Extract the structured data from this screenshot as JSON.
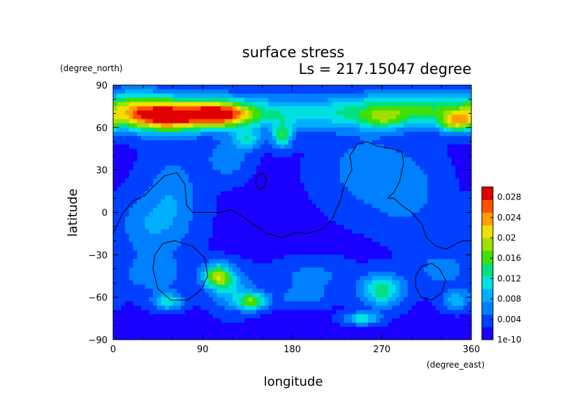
{
  "chart_data": {
    "type": "heatmap",
    "title": "surface stress",
    "subtitle": "Ls = 217.15047 degree",
    "xlabel": "longitude",
    "ylabel": "latitude",
    "x_units": "(degree_east)",
    "y_units": "(degree_north)",
    "xlim": [
      0,
      360
    ],
    "ylim": [
      -90,
      90
    ],
    "x_ticks": [
      0,
      90,
      180,
      270,
      360
    ],
    "y_ticks": [
      90,
      60,
      30,
      0,
      -30,
      -60,
      -90
    ],
    "x_tick_labels": [
      "0",
      "90",
      "180",
      "270",
      "360"
    ],
    "y_tick_labels": [
      "90",
      "60",
      "30",
      "0",
      "−30",
      "−60",
      "−90"
    ],
    "colorbar": {
      "min": 0,
      "max": 0.03,
      "tick_values": [
        0,
        0.004,
        0.008,
        0.012,
        0.016,
        0.02,
        0.024,
        0.028
      ],
      "tick_labels": [
        "1e-10",
        "0.004",
        "0.008",
        "0.012",
        "0.016",
        "0.02",
        "0.024",
        "0.028"
      ],
      "colors": [
        "#1a00ff",
        "#0040ff",
        "#0080ff",
        "#00b0ff",
        "#00e0e0",
        "#00e080",
        "#40e000",
        "#a0e000",
        "#f0e000",
        "#ffa000",
        "#ff5000",
        "#e00000"
      ]
    },
    "field": {
      "background": 0.002,
      "hotspots": [
        {
          "lon": 20,
          "lat": 72,
          "slon": 25,
          "slat": 9,
          "v": 0.012
        },
        {
          "lon": 55,
          "lat": 67,
          "slon": 25,
          "slat": 7,
          "v": 0.018
        },
        {
          "lon": 108,
          "lat": 69,
          "slon": 22,
          "slat": 6,
          "v": 0.02
        },
        {
          "lon": 80,
          "lat": 72,
          "slon": 40,
          "slat": 9,
          "v": 0.01
        },
        {
          "lon": 165,
          "lat": 70,
          "slon": 35,
          "slat": 8,
          "v": 0.006
        },
        {
          "lon": 230,
          "lat": 70,
          "slon": 50,
          "slat": 8,
          "v": 0.006
        },
        {
          "lon": 300,
          "lat": 73,
          "slon": 45,
          "slat": 8,
          "v": 0.012
        },
        {
          "lon": 345,
          "lat": 64,
          "slon": 12,
          "slat": 5,
          "v": 0.014
        },
        {
          "lon": 270,
          "lat": 65,
          "slon": 15,
          "slat": 4,
          "v": 0.006
        },
        {
          "lon": 170,
          "lat": 54,
          "slon": 7,
          "slat": 6,
          "v": 0.012
        },
        {
          "lon": 135,
          "lat": 52,
          "slon": 10,
          "slat": 5,
          "v": 0.009
        },
        {
          "lon": 115,
          "lat": 38,
          "slon": 15,
          "slat": 10,
          "v": 0.005
        },
        {
          "lon": 60,
          "lat": 8,
          "slon": 20,
          "slat": 25,
          "v": 0.005
        },
        {
          "lon": 30,
          "lat": -10,
          "slon": 20,
          "slat": 15,
          "v": 0.004
        },
        {
          "lon": 250,
          "lat": 30,
          "slon": 30,
          "slat": 20,
          "v": 0.004
        },
        {
          "lon": 295,
          "lat": 15,
          "slon": 25,
          "slat": 20,
          "v": 0.004
        },
        {
          "lon": 105,
          "lat": -45,
          "slon": 10,
          "slat": 6,
          "v": 0.016
        },
        {
          "lon": 120,
          "lat": -55,
          "slon": 15,
          "slat": 10,
          "v": 0.007
        },
        {
          "lon": 140,
          "lat": -63,
          "slon": 10,
          "slat": 4,
          "v": 0.014
        },
        {
          "lon": 55,
          "lat": -63,
          "slon": 10,
          "slat": 4,
          "v": 0.01
        },
        {
          "lon": 40,
          "lat": -45,
          "slon": 25,
          "slat": 10,
          "v": 0.004
        },
        {
          "lon": 270,
          "lat": -55,
          "slon": 15,
          "slat": 8,
          "v": 0.012
        },
        {
          "lon": 250,
          "lat": -75,
          "slon": 12,
          "slat": 3,
          "v": 0.01
        },
        {
          "lon": 345,
          "lat": -62,
          "slon": 10,
          "slat": 5,
          "v": 0.007
        },
        {
          "lon": 330,
          "lat": -40,
          "slon": 20,
          "slat": 10,
          "v": 0.004
        },
        {
          "lon": 200,
          "lat": -45,
          "slon": 25,
          "slat": 8,
          "v": 0.004
        },
        {
          "lon": 190,
          "lat": -60,
          "slon": 20,
          "slat": 5,
          "v": 0.004
        }
      ]
    },
    "contours": [
      {
        "name": "continent-outline",
        "points": [
          [
            0,
            -15
          ],
          [
            10,
            0
          ],
          [
            20,
            8
          ],
          [
            32,
            12
          ],
          [
            40,
            18
          ],
          [
            52,
            26
          ],
          [
            64,
            28
          ],
          [
            72,
            20
          ],
          [
            74,
            5
          ],
          [
            80,
            0
          ],
          [
            95,
            0
          ],
          [
            108,
            0
          ],
          [
            118,
            2
          ],
          [
            126,
            -1
          ],
          [
            140,
            -8
          ],
          [
            155,
            -15
          ],
          [
            170,
            -18
          ],
          [
            185,
            -14
          ],
          [
            195,
            -15
          ],
          [
            210,
            -12
          ],
          [
            220,
            -5
          ],
          [
            228,
            8
          ],
          [
            232,
            18
          ],
          [
            236,
            25
          ],
          [
            240,
            30
          ],
          [
            238,
            40
          ],
          [
            245,
            48
          ],
          [
            255,
            50
          ],
          [
            265,
            47
          ],
          [
            280,
            45
          ],
          [
            290,
            43
          ],
          [
            292,
            35
          ],
          [
            288,
            22
          ],
          [
            282,
            14
          ],
          [
            276,
            10
          ],
          [
            282,
            10
          ],
          [
            290,
            5
          ],
          [
            300,
            0
          ],
          [
            310,
            -8
          ],
          [
            315,
            -18
          ],
          [
            325,
            -24
          ],
          [
            335,
            -26
          ],
          [
            345,
            -22
          ],
          [
            352,
            -20
          ],
          [
            360,
            -20
          ]
        ]
      },
      {
        "name": "small-blob",
        "points": [
          [
            143,
            20
          ],
          [
            145,
            26
          ],
          [
            150,
            28
          ],
          [
            154,
            24
          ],
          [
            152,
            18
          ],
          [
            147,
            16
          ],
          [
            143,
            20
          ]
        ]
      },
      {
        "name": "large-circle",
        "points": [
          [
            40,
            -40
          ],
          [
            42,
            -30
          ],
          [
            50,
            -22
          ],
          [
            62,
            -20
          ],
          [
            80,
            -24
          ],
          [
            92,
            -32
          ],
          [
            95,
            -45
          ],
          [
            88,
            -55
          ],
          [
            75,
            -62
          ],
          [
            58,
            -62
          ],
          [
            45,
            -54
          ],
          [
            40,
            -40
          ]
        ]
      },
      {
        "name": "small-circle",
        "points": [
          [
            304,
            -45
          ],
          [
            310,
            -38
          ],
          [
            320,
            -36
          ],
          [
            328,
            -40
          ],
          [
            334,
            -48
          ],
          [
            330,
            -57
          ],
          [
            320,
            -62
          ],
          [
            310,
            -60
          ],
          [
            304,
            -53
          ],
          [
            304,
            -45
          ]
        ]
      }
    ]
  }
}
